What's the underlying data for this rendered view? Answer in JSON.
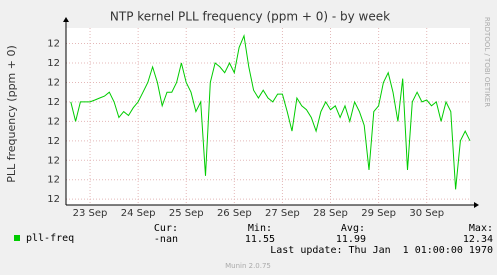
{
  "chart_data": {
    "type": "line",
    "title": "NTP kernel PLL frequency (ppm + 0) - by week",
    "y_label": "PLL frequency (ppm + 0)",
    "side_label": "RRDTOOL / TOBI OETIKER",
    "x": [
      22.6,
      22.7,
      22.8,
      22.9,
      23.0,
      23.1,
      23.2,
      23.3,
      23.4,
      23.5,
      23.6,
      23.7,
      23.8,
      23.9,
      24.0,
      24.1,
      24.2,
      24.3,
      24.4,
      24.5,
      24.6,
      24.7,
      24.8,
      24.9,
      25.0,
      25.1,
      25.2,
      25.3,
      25.4,
      25.5,
      25.6,
      25.7,
      25.8,
      25.9,
      26.0,
      26.1,
      26.2,
      26.3,
      26.4,
      26.5,
      26.6,
      26.7,
      26.8,
      26.9,
      27.0,
      27.1,
      27.2,
      27.3,
      27.4,
      27.5,
      27.6,
      27.7,
      27.8,
      27.9,
      28.0,
      28.1,
      28.2,
      28.3,
      28.4,
      28.5,
      28.6,
      28.7,
      28.8,
      28.9,
      29.0,
      29.1,
      29.2,
      29.3,
      29.4,
      29.5,
      29.6,
      29.7,
      29.8,
      29.9,
      30.0,
      30.1,
      30.2,
      30.3,
      30.4,
      30.5,
      30.6,
      30.7,
      30.8,
      30.9
    ],
    "series": [
      {
        "name": "pll-freq",
        "color": "#00cc00",
        "values": [
          12.0,
          11.9,
          12.0,
          12.0,
          12.0,
          12.01,
          12.02,
          12.03,
          12.05,
          12.0,
          11.92,
          11.95,
          11.93,
          11.97,
          12.0,
          12.05,
          12.1,
          12.18,
          12.1,
          11.98,
          12.05,
          12.05,
          12.1,
          12.2,
          12.1,
          12.05,
          11.95,
          12.0,
          11.62,
          12.1,
          12.2,
          12.18,
          12.15,
          12.2,
          12.15,
          12.28,
          12.34,
          12.18,
          12.06,
          12.02,
          12.06,
          12.02,
          12.0,
          12.04,
          12.04,
          11.95,
          11.85,
          12.02,
          11.98,
          11.96,
          11.92,
          11.85,
          11.95,
          12.0,
          11.96,
          11.98,
          11.92,
          11.98,
          11.9,
          12.0,
          11.95,
          11.88,
          11.65,
          11.95,
          11.98,
          12.1,
          12.15,
          12.05,
          11.9,
          12.12,
          11.65,
          12.0,
          12.05,
          12.0,
          12.01,
          11.98,
          12.0,
          11.9,
          12.0,
          11.95,
          11.55,
          11.8,
          11.85,
          11.8
        ]
      }
    ],
    "xlim": [
      22.5,
      30.9
    ],
    "xticks": [
      {
        "value": 23,
        "label": "23 Sep"
      },
      {
        "value": 24,
        "label": "24 Sep"
      },
      {
        "value": 25,
        "label": "25 Sep"
      },
      {
        "value": 26,
        "label": "26 Sep"
      },
      {
        "value": 27,
        "label": "27 Sep"
      },
      {
        "value": 28,
        "label": "28 Sep"
      },
      {
        "value": 29,
        "label": "29 Sep"
      },
      {
        "value": 30,
        "label": "30 Sep"
      }
    ],
    "ylim": [
      11.47,
      12.38
    ],
    "yticks": [
      {
        "value": 11.5,
        "label": "12"
      },
      {
        "value": 11.6,
        "label": "12"
      },
      {
        "value": 11.7,
        "label": "12"
      },
      {
        "value": 11.8,
        "label": "12"
      },
      {
        "value": 11.9,
        "label": "12"
      },
      {
        "value": 12.0,
        "label": "12"
      },
      {
        "value": 12.1,
        "label": "12"
      },
      {
        "value": 12.2,
        "label": "12"
      },
      {
        "value": 12.3,
        "label": "12"
      }
    ],
    "grid": true,
    "summary_labels": [
      "Cur:",
      "Min:",
      "Avg:",
      "Max:"
    ],
    "summary_values": [
      "-nan",
      11.55,
      11.99,
      12.34
    ],
    "last_update": "Last update: Thu Jan  1 01:00:00 1970",
    "footer": "Munin 2.0.75"
  }
}
